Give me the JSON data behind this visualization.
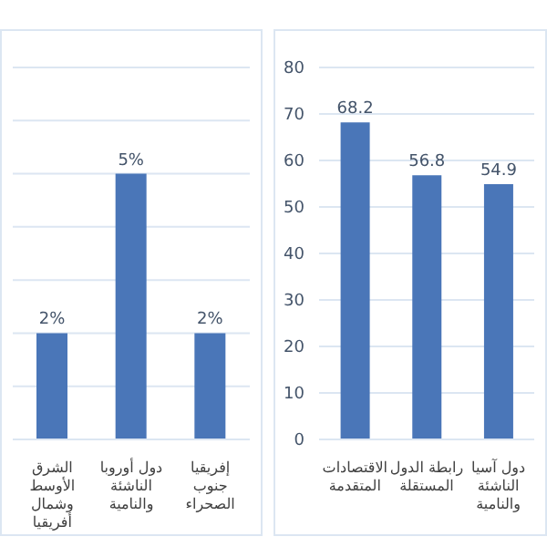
{
  "chart_data": [
    {
      "type": "bar",
      "categories": [
        "الشرق الأوسط وشمال أفريقيا",
        "دول أوروبا الناشئة والنامية",
        "إفريقيا جنوب الصحراء"
      ],
      "values": [
        2,
        5,
        2
      ],
      "value_labels": [
        "2%",
        "5%",
        "2%"
      ],
      "color": "#4a76b8",
      "ylim": [
        0,
        7
      ],
      "yticks": [
        0,
        1,
        2,
        3,
        4,
        5,
        6,
        7
      ],
      "grid": "y",
      "tick_labels": "x",
      "legend": false
    },
    {
      "type": "bar",
      "categories": [
        "الاقتصادات المتقدمة",
        "رابطة الدول المستقلة",
        "دول آسيا الناشئة والنامية"
      ],
      "values": [
        68.2,
        56.8,
        54.9
      ],
      "data_labels": true,
      "color": "#4a76b8",
      "ylim": [
        0,
        80
      ],
      "yticks": [
        0,
        10,
        20,
        30,
        40,
        50,
        60,
        70,
        80
      ],
      "grid": "y",
      "legend": false
    }
  ]
}
